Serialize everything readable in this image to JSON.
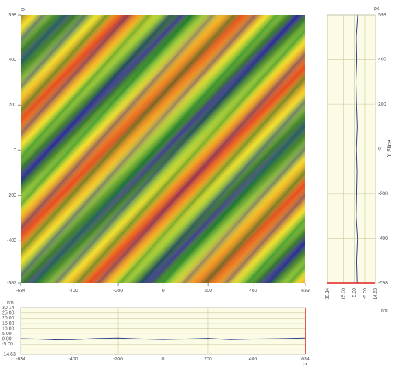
{
  "chart_data": [
    {
      "type": "image",
      "x_unit": "px",
      "y_unit": "px",
      "xlim": [
        -634,
        633
      ],
      "ylim": [
        -587,
        598
      ],
      "xticks": [
        -634,
        -400,
        -200,
        0,
        200,
        400,
        633
      ],
      "yticks": [
        -587,
        -400,
        -200,
        0,
        200,
        400,
        598
      ]
    },
    {
      "type": "line",
      "y_label": "nm",
      "x_unit": "px",
      "xlim": [
        -634,
        634
      ],
      "ylim": [
        -14.63,
        30.14
      ],
      "xticks": [
        -634,
        -400,
        -200,
        0,
        200,
        400,
        634
      ],
      "yticks": [
        30.14,
        {
          "value": 25,
          "label": "25.00"
        },
        {
          "value": 20,
          "label": "20.00"
        },
        {
          "value": 15,
          "label": "15.00"
        },
        {
          "value": 10,
          "label": "10.00"
        },
        {
          "value": 5,
          "label": "5.00"
        },
        {
          "value": 0,
          "label": "0.00"
        },
        {
          "value": -5,
          "label": "-5.00"
        },
        -14.63
      ],
      "x": [
        -634,
        -560,
        -480,
        -400,
        -300,
        -200,
        -100,
        0,
        100,
        200,
        300,
        400,
        500,
        634
      ],
      "values": [
        0.5,
        0.2,
        -0.5,
        -0.3,
        0.6,
        1.0,
        0.3,
        -0.2,
        0.2,
        0.8,
        -0.3,
        0.2,
        0.4,
        1.0
      ],
      "color": "#2b3f8c"
    },
    {
      "type": "line",
      "title": "Y Slice",
      "y_unit": "px",
      "x_unit": "nm",
      "ylim": [
        -598,
        598
      ],
      "xlim": [
        30.14,
        -14.63
      ],
      "yticks": [
        -598,
        -400,
        -200,
        0,
        200,
        400,
        598
      ],
      "xticks": [
        30.14,
        {
          "value": 15,
          "label": "15.00"
        },
        {
          "value": 5,
          "label": "5.00"
        },
        {
          "value": -5,
          "label": "-5.00"
        },
        -14.63
      ],
      "y": [
        -598,
        -500,
        -400,
        -300,
        -200,
        -100,
        0,
        100,
        200,
        300,
        400,
        500,
        598
      ],
      "values": [
        2.5,
        3.0,
        2.2,
        3.4,
        3.0,
        2.6,
        3.2,
        2.4,
        3.1,
        3.6,
        2.9,
        3.3,
        2.0
      ],
      "color": "#2b3f8c"
    }
  ]
}
